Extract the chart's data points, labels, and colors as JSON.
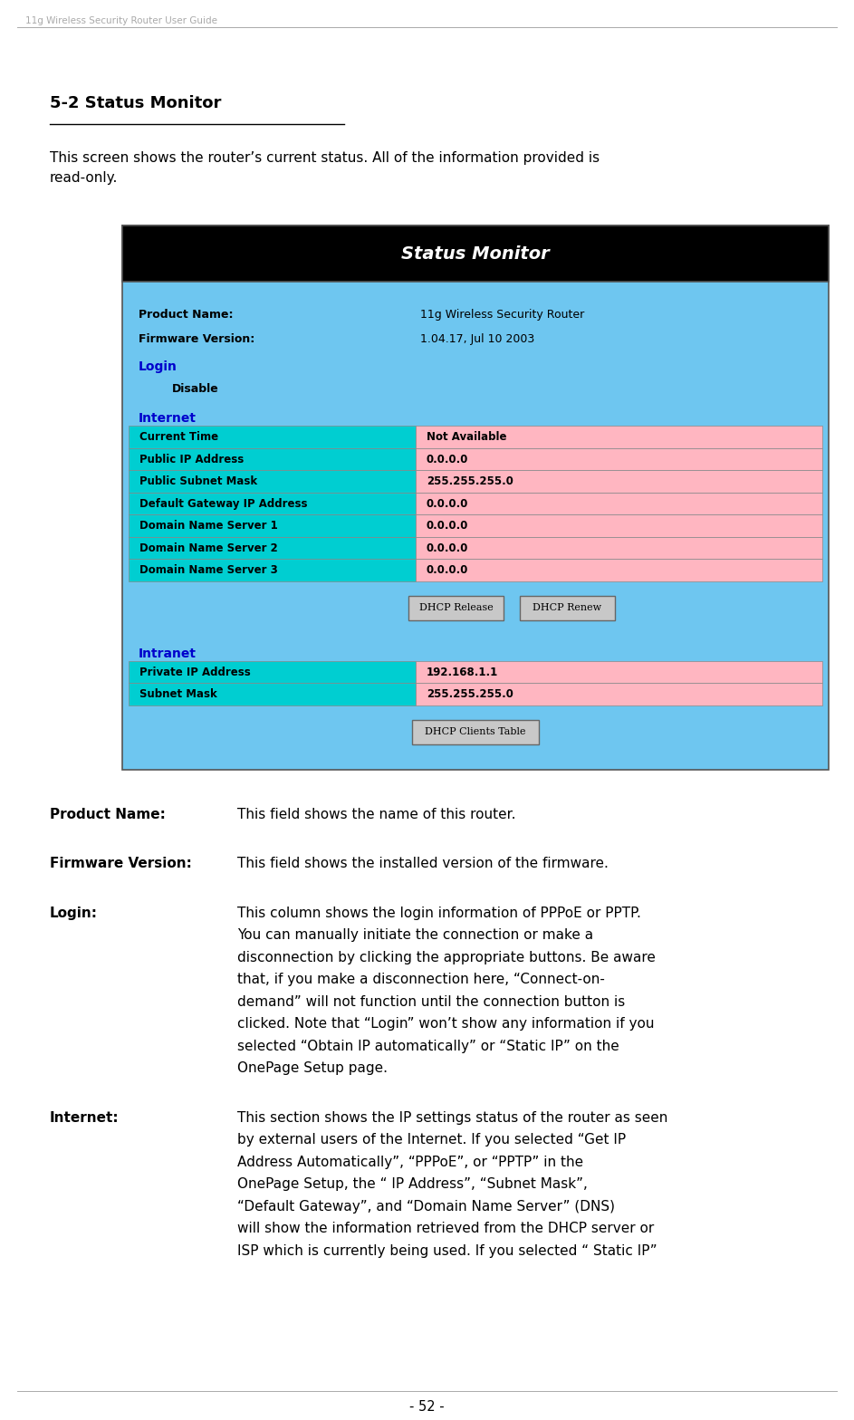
{
  "page_header": "11g Wireless Security Router User Guide",
  "section_title": "5-2 Status Monitor",
  "intro_text": "This screen shows the router’s current status. All of the information provided is\nread-only.",
  "status_monitor_title": "Status Monitor",
  "colors": {
    "header_bg": "#000000",
    "header_text": "#ffffff",
    "panel_bg": "#6EC6F0",
    "row_left_teal": "#00CED1",
    "row_right_pink": "#FFB6C1",
    "row_border": "#888888",
    "blue_label": "#0000CC",
    "black_text": "#000000",
    "button_bg": "#c8c8c8",
    "button_border": "#666666",
    "page_bg": "#ffffff"
  },
  "product_name_label": "Product Name:",
  "product_name_value": "11g Wireless Security Router",
  "firmware_label": "Firmware Version:",
  "firmware_value": "1.04.17, Jul 10 2003",
  "login_label": "Login",
  "login_sub": "Disable",
  "internet_label": "Internet",
  "internet_rows": [
    [
      "Current Time",
      "Not Available"
    ],
    [
      "Public IP Address",
      "0.0.0.0"
    ],
    [
      "Public Subnet Mask",
      "255.255.255.0"
    ],
    [
      "Default Gateway IP Address",
      "0.0.0.0"
    ],
    [
      "Domain Name Server 1",
      "0.0.0.0"
    ],
    [
      "Domain Name Server 2",
      "0.0.0.0"
    ],
    [
      "Domain Name Server 3",
      "0.0.0.0"
    ]
  ],
  "button1": "DHCP Release",
  "button2": "DHCP Renew",
  "intranet_label": "Intranet",
  "intranet_rows": [
    [
      "Private IP Address",
      "192.168.1.1"
    ],
    [
      "Subnet Mask",
      "255.255.255.0"
    ]
  ],
  "button3": "DHCP Clients Table",
  "desc_items": [
    {
      "term": "Product Name:",
      "text": "This field shows the name of this router.",
      "lines": 1
    },
    {
      "term": "Firmware Version:",
      "text": "This field shows the installed version of the firmware.",
      "lines": 1
    },
    {
      "term": "Login:",
      "text": "This column shows the login information of PPPoE or PPTP.\nYou can manually initiate the connection or make a\ndisconnection by clicking the appropriate buttons. Be aware\nthat, if you make a disconnection here, “Connect-on-\ndemand” will not function until the connection button is\nclicked. Note that “Login” won’t show any information if you\nselected “Obtain IP automatically” or “Static IP” on the\nOnePage Setup page.",
      "lines": 8
    },
    {
      "term": "Internet:",
      "text": "This section shows the IP settings status of the router as seen\nby external users of the Internet. If you selected “Get IP\nAddress Automatically”, “PPPoE”, or “PPTP” in the\nOnePage Setup, the “ IP Address”, “Subnet Mask”,\n“Default Gateway”, and “Domain Name Server” (DNS)\nwill show the information retrieved from the DHCP server or\nISP which is currently being used. If you selected “ Static IP”",
      "lines": 7
    }
  ],
  "page_number": "- 52 -"
}
